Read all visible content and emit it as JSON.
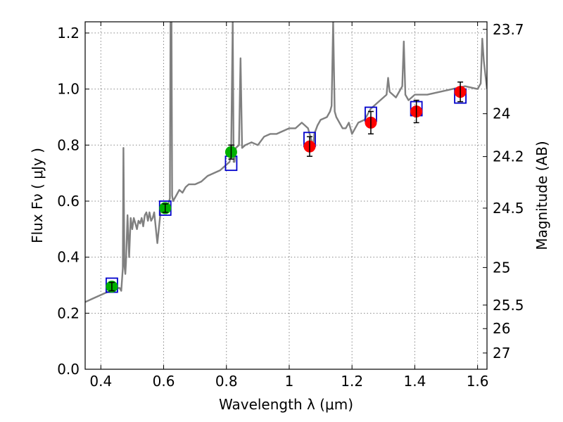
{
  "chart_data": {
    "type": "line",
    "title": "",
    "xlabel": "Wavelength  λ (μm)",
    "ylabel": "Flux  Fν  ( μJy )",
    "y2label": "Magnitude (AB)",
    "xlim": [
      0.35,
      1.63
    ],
    "ylim": [
      0.0,
      1.24
    ],
    "grid": true,
    "x_ticks": [
      0.4,
      0.6,
      0.8,
      1.0,
      1.2,
      1.4,
      1.6
    ],
    "x_tick_labels": [
      "0.4",
      "0.6",
      "0.8",
      "1",
      "1.2",
      "1.4",
      "1.6"
    ],
    "y_ticks": [
      0.0,
      0.2,
      0.4,
      0.6,
      0.8,
      1.0,
      1.2
    ],
    "y_tick_labels": [
      "0.0",
      "0.2",
      "0.4",
      "0.6",
      "0.8",
      "1.0",
      "1.2"
    ],
    "y2_ticks": [
      {
        "label": "23.7",
        "flux": 1.213
      },
      {
        "label": "24",
        "flux": 0.912
      },
      {
        "label": "24.2",
        "flux": 0.759
      },
      {
        "label": "24.5",
        "flux": 0.575
      },
      {
        "label": "25",
        "flux": 0.363
      },
      {
        "label": "25.5",
        "flux": 0.229
      },
      {
        "label": "26",
        "flux": 0.145
      },
      {
        "label": "27",
        "flux": 0.058
      }
    ],
    "colors": {
      "spectrum": "#808080",
      "model": "#0000cc",
      "green": "#00b000",
      "red": "#ff0000",
      "error": "#000000",
      "grid": "#888888"
    },
    "series": [
      {
        "type": "line",
        "x": [
          0.35,
          0.37,
          0.39,
          0.41,
          0.43,
          0.45,
          0.46,
          0.465,
          0.47,
          0.472,
          0.475,
          0.478,
          0.48,
          0.485,
          0.49,
          0.495,
          0.5,
          0.505,
          0.51,
          0.515,
          0.52,
          0.525,
          0.53,
          0.535,
          0.54,
          0.545,
          0.55,
          0.555,
          0.56,
          0.565,
          0.57,
          0.58,
          0.59,
          0.6,
          0.61,
          0.615,
          0.62,
          0.622,
          0.625,
          0.627,
          0.63,
          0.64,
          0.65,
          0.66,
          0.67,
          0.68,
          0.7,
          0.72,
          0.74,
          0.76,
          0.78,
          0.8,
          0.81,
          0.815,
          0.82,
          0.823,
          0.826,
          0.83,
          0.84,
          0.845,
          0.85,
          0.86,
          0.88,
          0.9,
          0.92,
          0.94,
          0.96,
          0.98,
          1.0,
          1.02,
          1.04,
          1.05,
          1.06,
          1.07,
          1.075,
          1.08,
          1.09,
          1.1,
          1.12,
          1.13,
          1.135,
          1.14,
          1.145,
          1.15,
          1.17,
          1.18,
          1.19,
          1.2,
          1.22,
          1.24,
          1.26,
          1.28,
          1.3,
          1.31,
          1.315,
          1.32,
          1.33,
          1.34,
          1.36,
          1.365,
          1.37,
          1.38,
          1.4,
          1.44,
          1.48,
          1.52,
          1.56,
          1.6,
          1.61,
          1.615,
          1.62,
          1.63
        ],
        "y": [
          0.24,
          0.25,
          0.26,
          0.27,
          0.28,
          0.29,
          0.29,
          0.28,
          0.36,
          0.79,
          0.37,
          0.34,
          0.38,
          0.55,
          0.4,
          0.54,
          0.5,
          0.54,
          0.52,
          0.5,
          0.53,
          0.52,
          0.54,
          0.51,
          0.55,
          0.56,
          0.53,
          0.56,
          0.53,
          0.54,
          0.56,
          0.45,
          0.56,
          0.57,
          0.58,
          0.59,
          0.61,
          1.24,
          1.24,
          0.62,
          0.6,
          0.62,
          0.64,
          0.63,
          0.65,
          0.66,
          0.66,
          0.67,
          0.69,
          0.7,
          0.71,
          0.73,
          0.74,
          0.77,
          1.24,
          0.74,
          0.74,
          0.79,
          0.8,
          1.11,
          0.79,
          0.8,
          0.81,
          0.8,
          0.83,
          0.84,
          0.84,
          0.85,
          0.86,
          0.86,
          0.88,
          0.87,
          0.86,
          0.82,
          0.78,
          0.84,
          0.87,
          0.89,
          0.9,
          0.92,
          0.94,
          1.24,
          0.92,
          0.9,
          0.86,
          0.86,
          0.88,
          0.84,
          0.88,
          0.89,
          0.93,
          0.95,
          0.97,
          0.98,
          1.04,
          0.99,
          0.98,
          0.97,
          1.01,
          1.17,
          0.98,
          0.96,
          0.98,
          0.98,
          0.99,
          1.0,
          1.01,
          1.0,
          1.02,
          1.18,
          1.1,
          1.0
        ]
      },
      {
        "type": "model-boxes",
        "x": [
          0.435,
          0.605,
          0.815,
          1.065,
          1.26,
          1.405,
          1.545
        ],
        "y": [
          0.3,
          0.575,
          0.735,
          0.82,
          0.91,
          0.93,
          0.975
        ]
      },
      {
        "type": "observed-green",
        "x": [
          0.435,
          0.605,
          0.815
        ],
        "y": [
          0.295,
          0.575,
          0.775
        ],
        "yerr": [
          0.015,
          0.015,
          0.025
        ]
      },
      {
        "type": "observed-red",
        "x": [
          1.065,
          1.26,
          1.405,
          1.545
        ],
        "y": [
          0.795,
          0.88,
          0.92,
          0.99
        ],
        "yerr": [
          0.035,
          0.04,
          0.04,
          0.035
        ]
      }
    ]
  }
}
